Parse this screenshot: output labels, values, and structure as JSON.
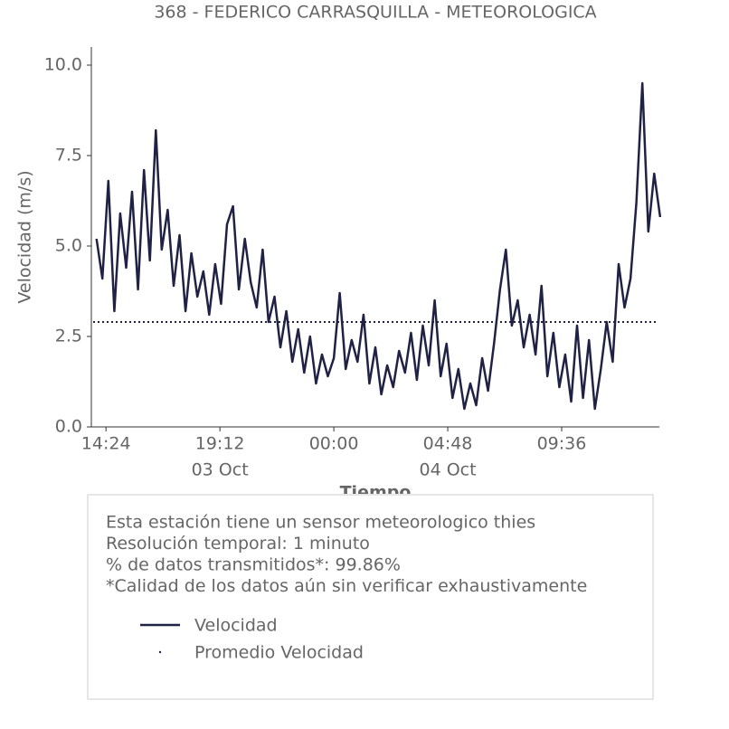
{
  "chart_data": {
    "type": "line",
    "title": "368 - FEDERICO CARRASQUILLA - METEOROLOGICA",
    "xlabel": "Tiempo",
    "ylabel": "Velocidad (m/s)",
    "x": [
      "03 Oct 14:00",
      "03 Oct 14:15",
      "03 Oct 14:30",
      "03 Oct 14:45",
      "03 Oct 15:00",
      "03 Oct 15:15",
      "03 Oct 15:30",
      "03 Oct 15:45",
      "03 Oct 16:00",
      "03 Oct 16:15",
      "03 Oct 16:30",
      "03 Oct 16:45",
      "03 Oct 17:00",
      "03 Oct 17:15",
      "03 Oct 17:30",
      "03 Oct 17:45",
      "03 Oct 18:00",
      "03 Oct 18:15",
      "03 Oct 18:30",
      "03 Oct 18:45",
      "03 Oct 19:00",
      "03 Oct 19:15",
      "03 Oct 19:30",
      "03 Oct 19:45",
      "03 Oct 20:00",
      "03 Oct 20:15",
      "03 Oct 20:30",
      "03 Oct 20:45",
      "03 Oct 21:00",
      "03 Oct 21:15",
      "03 Oct 21:30",
      "03 Oct 21:45",
      "03 Oct 22:00",
      "03 Oct 22:15",
      "03 Oct 22:30",
      "03 Oct 22:45",
      "03 Oct 23:00",
      "03 Oct 23:15",
      "03 Oct 23:30",
      "03 Oct 23:45",
      "04 Oct 00:00",
      "04 Oct 00:15",
      "04 Oct 00:30",
      "04 Oct 00:45",
      "04 Oct 01:00",
      "04 Oct 01:15",
      "04 Oct 01:30",
      "04 Oct 01:45",
      "04 Oct 02:00",
      "04 Oct 02:15",
      "04 Oct 02:30",
      "04 Oct 02:45",
      "04 Oct 03:00",
      "04 Oct 03:15",
      "04 Oct 03:30",
      "04 Oct 03:45",
      "04 Oct 04:00",
      "04 Oct 04:15",
      "04 Oct 04:30",
      "04 Oct 04:45",
      "04 Oct 05:00",
      "04 Oct 05:15",
      "04 Oct 05:30",
      "04 Oct 05:45",
      "04 Oct 06:00",
      "04 Oct 06:15",
      "04 Oct 06:30",
      "04 Oct 06:45",
      "04 Oct 07:00",
      "04 Oct 07:15",
      "04 Oct 07:30",
      "04 Oct 07:45",
      "04 Oct 08:00",
      "04 Oct 08:15",
      "04 Oct 08:30",
      "04 Oct 08:45",
      "04 Oct 09:00",
      "04 Oct 09:15",
      "04 Oct 09:30",
      "04 Oct 09:45",
      "04 Oct 10:00",
      "04 Oct 10:15",
      "04 Oct 10:30",
      "04 Oct 10:45",
      "04 Oct 11:00",
      "04 Oct 11:15",
      "04 Oct 11:30",
      "04 Oct 11:45",
      "04 Oct 12:00",
      "04 Oct 12:15",
      "04 Oct 12:30",
      "04 Oct 12:45",
      "04 Oct 13:00",
      "04 Oct 13:15",
      "04 Oct 13:30",
      "04 Oct 13:45"
    ],
    "series": [
      {
        "name": "Velocidad",
        "color": "#1f2244",
        "values": [
          5.2,
          4.1,
          6.8,
          3.2,
          5.9,
          4.4,
          6.5,
          3.8,
          7.1,
          4.6,
          8.2,
          4.9,
          6.0,
          3.9,
          5.3,
          3.2,
          4.8,
          3.6,
          4.3,
          3.1,
          4.5,
          3.4,
          5.6,
          6.1,
          3.8,
          5.2,
          4.0,
          3.3,
          4.9,
          2.9,
          3.6,
          2.2,
          3.2,
          1.8,
          2.7,
          1.5,
          2.5,
          1.2,
          2.0,
          1.4,
          1.9,
          3.7,
          1.6,
          2.4,
          1.8,
          3.1,
          1.2,
          2.2,
          0.9,
          1.7,
          1.1,
          2.1,
          1.5,
          2.6,
          1.3,
          2.8,
          1.7,
          3.5,
          1.4,
          2.3,
          0.8,
          1.6,
          0.5,
          1.2,
          0.6,
          1.9,
          1.0,
          2.3,
          3.8,
          4.9,
          2.8,
          3.5,
          2.2,
          3.1,
          2.0,
          3.9,
          1.4,
          2.6,
          1.1,
          2.0,
          0.7,
          2.8,
          0.8,
          2.4,
          0.5,
          1.6,
          2.9,
          1.8,
          4.5,
          3.3,
          4.1,
          6.2,
          9.5,
          5.4,
          7.0,
          5.8
        ]
      },
      {
        "name": "Promedio Velocidad",
        "color": "#1f2244",
        "value": 2.9
      }
    ],
    "xlim": [
      "03 Oct 13:47",
      "04 Oct 13:43"
    ],
    "xticks": [
      {
        "value": "03 Oct 14:24",
        "label": "14:24"
      },
      {
        "value": "03 Oct 19:12",
        "label": "19:12"
      },
      {
        "value": "04 Oct 00:00",
        "label": "00:00"
      },
      {
        "value": "04 Oct 04:48",
        "label": "04:48"
      },
      {
        "value": "04 Oct 09:36",
        "label": "09:36"
      }
    ],
    "xtick_dates": [
      {
        "value": "03 Oct 19:12",
        "label": "03 Oct"
      },
      {
        "value": "04 Oct 04:48",
        "label": "04 Oct"
      }
    ],
    "ylim": [
      0,
      10.5
    ],
    "yticks": [
      {
        "value": 0,
        "label": "0.0"
      },
      {
        "value": 2.5,
        "label": "2.5"
      },
      {
        "value": 5,
        "label": "5.0"
      },
      {
        "value": 7.5,
        "label": "7.5"
      },
      {
        "value": 10,
        "label": "10.0"
      }
    ],
    "info": [
      "Esta estación tiene un sensor meteorologico thies",
      "Resolución temporal: 1 minuto",
      "% de datos transmitidos*: 99.86%",
      "*Calidad de los datos aún sin verificar exhaustivamente"
    ]
  }
}
